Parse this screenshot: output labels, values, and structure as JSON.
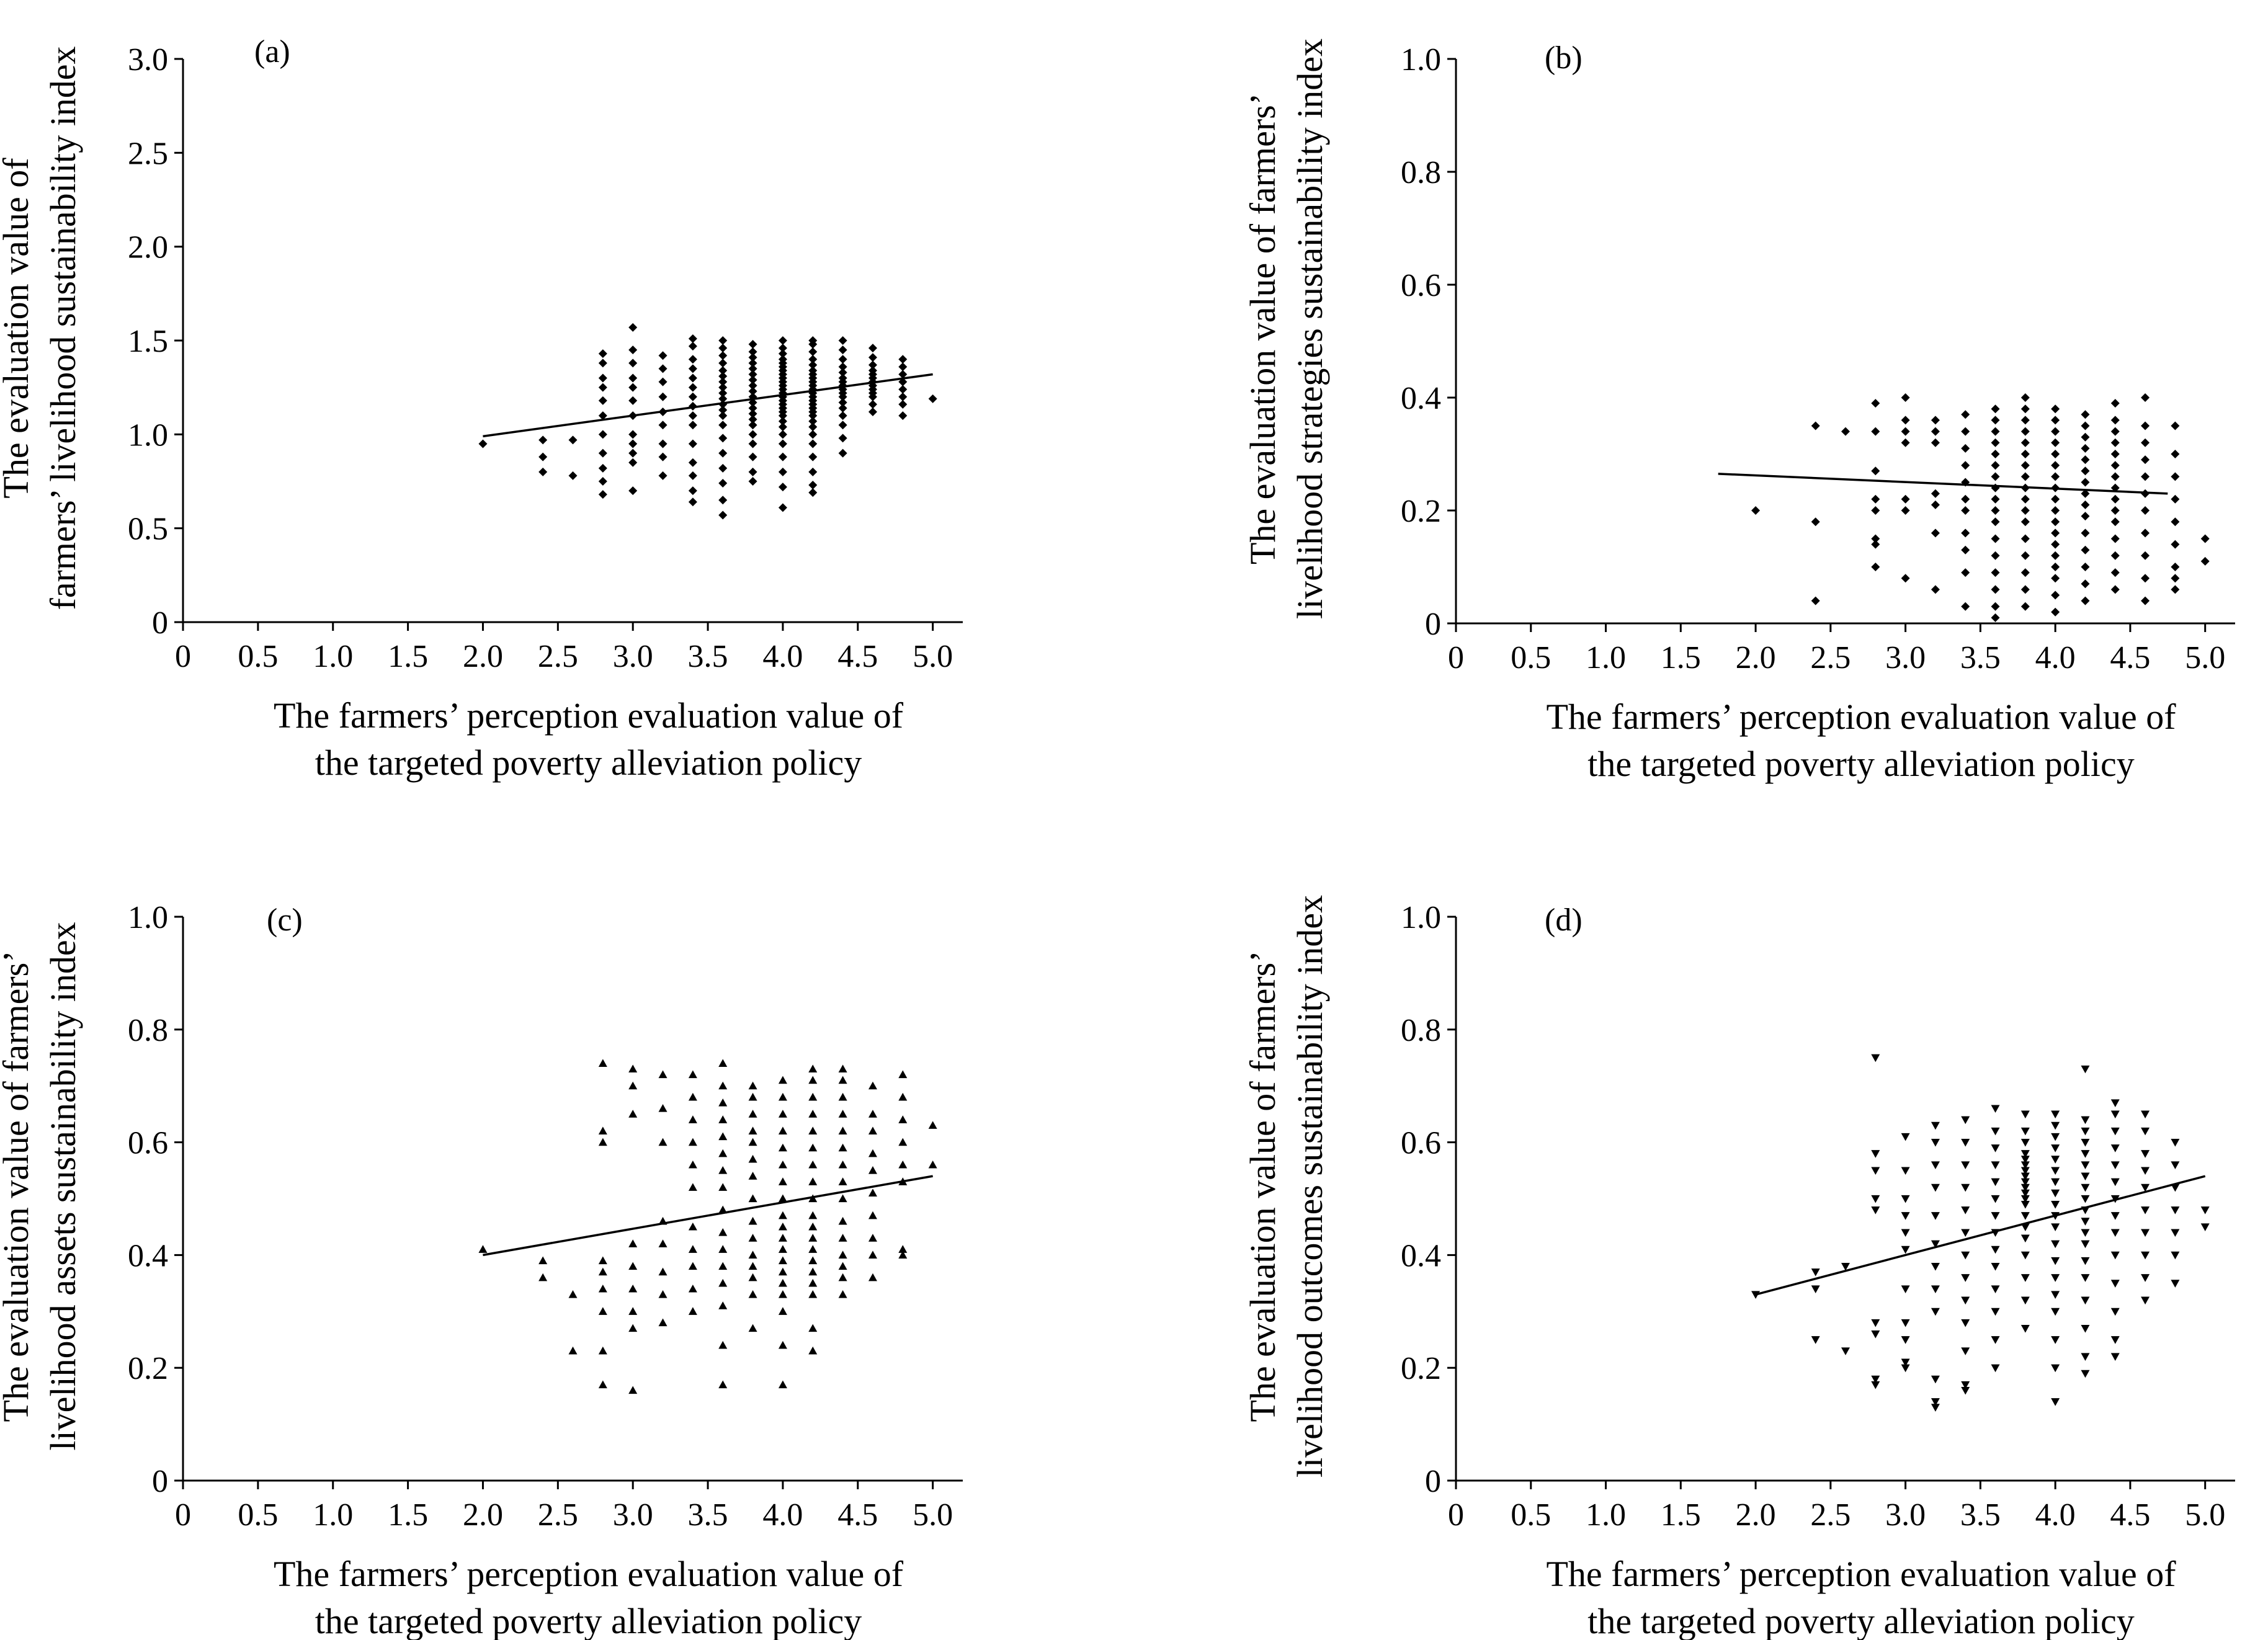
{
  "chart_data": [
    {
      "panel": "(a)",
      "type": "scatter",
      "marker": "diamond",
      "xlabel": [
        "The farmers’ perception evaluation value of",
        "the targeted poverty alleviation policy"
      ],
      "ylabel": [
        "The evaluation value of",
        "farmers’ livelihood sustainability index"
      ],
      "xlim": [
        0,
        5.2
      ],
      "ylim": [
        0,
        3.0
      ],
      "xticks": [
        "0",
        "0.5",
        "1.0",
        "1.5",
        "2.0",
        "2.5",
        "3.0",
        "3.5",
        "4.0",
        "4.5",
        "5.0"
      ],
      "yticks": [
        "0",
        "0.5",
        "1.0",
        "1.5",
        "2.0",
        "2.5",
        "3.0"
      ],
      "trendline": {
        "x": [
          2.0,
          5.0
        ],
        "y": [
          0.99,
          1.32
        ]
      },
      "columns": [
        {
          "x": 2.0,
          "y": [
            0.95
          ]
        },
        {
          "x": 2.4,
          "y": [
            0.8,
            0.88,
            0.97
          ]
        },
        {
          "x": 2.6,
          "y": [
            0.78,
            0.97
          ]
        },
        {
          "x": 2.8,
          "y": [
            0.68,
            0.75,
            0.82,
            0.9,
            1.0,
            1.1,
            1.18,
            1.25,
            1.3,
            1.38,
            1.43
          ]
        },
        {
          "x": 3.0,
          "y": [
            0.7,
            0.85,
            0.9,
            0.95,
            1.0,
            1.1,
            1.18,
            1.25,
            1.3,
            1.38,
            1.45,
            1.57
          ]
        },
        {
          "x": 3.2,
          "y": [
            0.78,
            0.88,
            0.95,
            1.05,
            1.12,
            1.2,
            1.28,
            1.35,
            1.42
          ]
        },
        {
          "x": 3.4,
          "y": [
            0.64,
            0.7,
            0.78,
            0.85,
            0.95,
            1.05,
            1.1,
            1.15,
            1.2,
            1.25,
            1.3,
            1.35,
            1.4,
            1.47,
            1.51
          ]
        },
        {
          "x": 3.6,
          "y": [
            0.57,
            0.65,
            0.74,
            0.82,
            0.9,
            0.98,
            1.05,
            1.1,
            1.13,
            1.16,
            1.19,
            1.22,
            1.25,
            1.28,
            1.31,
            1.34,
            1.38,
            1.42,
            1.46,
            1.5
          ]
        },
        {
          "x": 3.8,
          "y": [
            0.75,
            0.8,
            0.88,
            0.95,
            1.0,
            1.05,
            1.08,
            1.11,
            1.14,
            1.17,
            1.2,
            1.23,
            1.26,
            1.29,
            1.32,
            1.35,
            1.38,
            1.41,
            1.44,
            1.48
          ]
        },
        {
          "x": 4.0,
          "y": [
            0.61,
            0.72,
            0.8,
            0.88,
            0.95,
            1.0,
            1.04,
            1.07,
            1.1,
            1.12,
            1.14,
            1.16,
            1.18,
            1.2,
            1.22,
            1.24,
            1.26,
            1.28,
            1.3,
            1.32,
            1.34,
            1.36,
            1.38,
            1.4,
            1.43,
            1.46,
            1.5
          ]
        },
        {
          "x": 4.2,
          "y": [
            0.69,
            0.73,
            0.8,
            0.88,
            0.95,
            1.0,
            1.04,
            1.07,
            1.1,
            1.12,
            1.14,
            1.16,
            1.18,
            1.2,
            1.22,
            1.24,
            1.26,
            1.28,
            1.3,
            1.32,
            1.34,
            1.37,
            1.4,
            1.44,
            1.48,
            1.5
          ]
        },
        {
          "x": 4.4,
          "y": [
            0.9,
            0.98,
            1.05,
            1.1,
            1.14,
            1.17,
            1.2,
            1.22,
            1.24,
            1.26,
            1.28,
            1.3,
            1.33,
            1.36,
            1.4,
            1.45,
            1.5
          ]
        },
        {
          "x": 4.6,
          "y": [
            1.12,
            1.16,
            1.2,
            1.22,
            1.24,
            1.26,
            1.28,
            1.3,
            1.32,
            1.34,
            1.37,
            1.41,
            1.46
          ]
        },
        {
          "x": 4.8,
          "y": [
            1.1,
            1.16,
            1.2,
            1.24,
            1.28,
            1.32,
            1.36,
            1.4
          ]
        },
        {
          "x": 5.0,
          "y": [
            1.19
          ]
        }
      ]
    },
    {
      "panel": "(b)",
      "type": "scatter",
      "marker": "diamond",
      "xlabel": [
        "The farmers’ perception evaluation value of",
        "the targeted poverty alleviation policy"
      ],
      "ylabel": [
        "The evaluation value of farmers’",
        "livelihood strategies sustainability index"
      ],
      "xlim": [
        0,
        5.2
      ],
      "ylim": [
        0,
        1.0
      ],
      "xticks": [
        "0",
        "0.5",
        "1.0",
        "1.5",
        "2.0",
        "2.5",
        "3.0",
        "3.5",
        "4.0",
        "4.5",
        "5.0"
      ],
      "yticks": [
        "0",
        "0.2",
        "0.4",
        "0.6",
        "0.8",
        "1.0"
      ],
      "trendline": {
        "x": [
          1.75,
          4.75
        ],
        "y": [
          0.265,
          0.23
        ]
      },
      "columns": [
        {
          "x": 2.0,
          "y": [
            0.2
          ]
        },
        {
          "x": 2.4,
          "y": [
            0.04,
            0.18,
            0.35
          ]
        },
        {
          "x": 2.6,
          "y": [
            0.34
          ]
        },
        {
          "x": 2.8,
          "y": [
            0.1,
            0.14,
            0.15,
            0.2,
            0.22,
            0.27,
            0.34,
            0.39
          ]
        },
        {
          "x": 3.0,
          "y": [
            0.08,
            0.2,
            0.22,
            0.32,
            0.34,
            0.36,
            0.4
          ]
        },
        {
          "x": 3.2,
          "y": [
            0.06,
            0.16,
            0.21,
            0.23,
            0.32,
            0.34,
            0.36
          ]
        },
        {
          "x": 3.4,
          "y": [
            0.03,
            0.09,
            0.13,
            0.16,
            0.2,
            0.22,
            0.25,
            0.28,
            0.31,
            0.34,
            0.37
          ]
        },
        {
          "x": 3.6,
          "y": [
            0.01,
            0.03,
            0.06,
            0.09,
            0.12,
            0.15,
            0.18,
            0.2,
            0.22,
            0.24,
            0.26,
            0.28,
            0.3,
            0.32,
            0.34,
            0.36,
            0.38
          ]
        },
        {
          "x": 3.8,
          "y": [
            0.03,
            0.06,
            0.09,
            0.12,
            0.15,
            0.18,
            0.2,
            0.22,
            0.24,
            0.26,
            0.28,
            0.3,
            0.32,
            0.34,
            0.36,
            0.38,
            0.4
          ]
        },
        {
          "x": 4.0,
          "y": [
            0.02,
            0.05,
            0.08,
            0.1,
            0.12,
            0.14,
            0.16,
            0.18,
            0.2,
            0.22,
            0.24,
            0.26,
            0.28,
            0.3,
            0.32,
            0.34,
            0.36,
            0.38
          ]
        },
        {
          "x": 4.2,
          "y": [
            0.04,
            0.07,
            0.1,
            0.13,
            0.16,
            0.19,
            0.21,
            0.23,
            0.25,
            0.27,
            0.29,
            0.31,
            0.33,
            0.35,
            0.37
          ]
        },
        {
          "x": 4.4,
          "y": [
            0.06,
            0.09,
            0.12,
            0.15,
            0.18,
            0.2,
            0.22,
            0.24,
            0.26,
            0.28,
            0.3,
            0.32,
            0.34,
            0.36,
            0.39
          ]
        },
        {
          "x": 4.6,
          "y": [
            0.04,
            0.08,
            0.12,
            0.16,
            0.2,
            0.23,
            0.26,
            0.29,
            0.32,
            0.35,
            0.4
          ]
        },
        {
          "x": 4.8,
          "y": [
            0.06,
            0.08,
            0.1,
            0.14,
            0.18,
            0.22,
            0.26,
            0.3,
            0.35
          ]
        },
        {
          "x": 5.0,
          "y": [
            0.11,
            0.15
          ]
        }
      ]
    },
    {
      "panel": "(c)",
      "type": "scatter",
      "marker": "triangle-up",
      "xlabel": [
        "The farmers’ perception evaluation value of",
        "the targeted poverty alleviation policy"
      ],
      "ylabel": [
        "The evaluation value of farmers’",
        "livelihood assets sustainability index"
      ],
      "xlim": [
        0,
        5.2
      ],
      "ylim": [
        0,
        1.0
      ],
      "xticks": [
        "0",
        "0.5",
        "1.0",
        "1.5",
        "2.0",
        "2.5",
        "3.0",
        "3.5",
        "4.0",
        "4.5",
        "5.0"
      ],
      "yticks": [
        "0",
        "0.2",
        "0.4",
        "0.6",
        "0.8",
        "1.0"
      ],
      "trendline": {
        "x": [
          2.0,
          5.0
        ],
        "y": [
          0.4,
          0.54
        ]
      },
      "columns": [
        {
          "x": 2.0,
          "y": [
            0.41
          ]
        },
        {
          "x": 2.4,
          "y": [
            0.36,
            0.39
          ]
        },
        {
          "x": 2.6,
          "y": [
            0.23,
            0.33
          ]
        },
        {
          "x": 2.8,
          "y": [
            0.17,
            0.23,
            0.3,
            0.34,
            0.37,
            0.39,
            0.6,
            0.62,
            0.74
          ]
        },
        {
          "x": 3.0,
          "y": [
            0.16,
            0.27,
            0.3,
            0.34,
            0.38,
            0.42,
            0.65,
            0.7,
            0.73
          ]
        },
        {
          "x": 3.2,
          "y": [
            0.28,
            0.33,
            0.37,
            0.42,
            0.46,
            0.6,
            0.66,
            0.72
          ]
        },
        {
          "x": 3.4,
          "y": [
            0.3,
            0.34,
            0.38,
            0.41,
            0.45,
            0.52,
            0.56,
            0.6,
            0.64,
            0.68,
            0.72
          ]
        },
        {
          "x": 3.6,
          "y": [
            0.17,
            0.24,
            0.31,
            0.35,
            0.38,
            0.41,
            0.44,
            0.48,
            0.52,
            0.55,
            0.58,
            0.61,
            0.64,
            0.67,
            0.7,
            0.74
          ]
        },
        {
          "x": 3.8,
          "y": [
            0.27,
            0.33,
            0.36,
            0.38,
            0.4,
            0.43,
            0.46,
            0.5,
            0.54,
            0.57,
            0.6,
            0.62,
            0.65,
            0.68,
            0.7
          ]
        },
        {
          "x": 4.0,
          "y": [
            0.17,
            0.24,
            0.3,
            0.33,
            0.35,
            0.37,
            0.39,
            0.41,
            0.43,
            0.45,
            0.47,
            0.5,
            0.53,
            0.56,
            0.59,
            0.62,
            0.65,
            0.68,
            0.71
          ]
        },
        {
          "x": 4.2,
          "y": [
            0.23,
            0.27,
            0.33,
            0.35,
            0.37,
            0.39,
            0.41,
            0.43,
            0.45,
            0.47,
            0.5,
            0.53,
            0.56,
            0.59,
            0.62,
            0.65,
            0.68,
            0.71,
            0.73
          ]
        },
        {
          "x": 4.4,
          "y": [
            0.33,
            0.36,
            0.38,
            0.4,
            0.43,
            0.46,
            0.5,
            0.53,
            0.56,
            0.59,
            0.62,
            0.65,
            0.68,
            0.71,
            0.73
          ]
        },
        {
          "x": 4.6,
          "y": [
            0.36,
            0.4,
            0.43,
            0.47,
            0.51,
            0.55,
            0.58,
            0.62,
            0.65,
            0.7
          ]
        },
        {
          "x": 4.8,
          "y": [
            0.4,
            0.41,
            0.53,
            0.56,
            0.6,
            0.64,
            0.68,
            0.72
          ]
        },
        {
          "x": 5.0,
          "y": [
            0.56,
            0.63
          ]
        }
      ]
    },
    {
      "panel": "(d)",
      "type": "scatter",
      "marker": "triangle-down",
      "xlabel": [
        "The farmers’ perception evaluation value of",
        "the targeted poverty alleviation policy"
      ],
      "ylabel": [
        "The evaluation value of farmers’",
        "livelihood outcomes sustainability index"
      ],
      "xlim": [
        0,
        5.2
      ],
      "ylim": [
        0,
        1.0
      ],
      "xticks": [
        "0",
        "0.5",
        "1.0",
        "1.5",
        "2.0",
        "2.5",
        "3.0",
        "3.5",
        "4.0",
        "4.5",
        "5.0"
      ],
      "yticks": [
        "0",
        "0.2",
        "0.4",
        "0.6",
        "0.8",
        "1.0"
      ],
      "trendline": {
        "x": [
          2.0,
          5.0
        ],
        "y": [
          0.33,
          0.54
        ]
      },
      "columns": [
        {
          "x": 2.0,
          "y": [
            0.33
          ]
        },
        {
          "x": 2.4,
          "y": [
            0.25,
            0.34,
            0.37
          ]
        },
        {
          "x": 2.6,
          "y": [
            0.23,
            0.38
          ]
        },
        {
          "x": 2.8,
          "y": [
            0.17,
            0.18,
            0.26,
            0.28,
            0.48,
            0.5,
            0.55,
            0.58,
            0.75
          ]
        },
        {
          "x": 3.0,
          "y": [
            0.2,
            0.21,
            0.25,
            0.28,
            0.34,
            0.41,
            0.44,
            0.47,
            0.5,
            0.55,
            0.61
          ]
        },
        {
          "x": 3.2,
          "y": [
            0.13,
            0.14,
            0.18,
            0.3,
            0.34,
            0.38,
            0.42,
            0.47,
            0.52,
            0.56,
            0.6,
            0.63
          ]
        },
        {
          "x": 3.4,
          "y": [
            0.16,
            0.17,
            0.23,
            0.28,
            0.32,
            0.36,
            0.4,
            0.44,
            0.48,
            0.52,
            0.56,
            0.6,
            0.64
          ]
        },
        {
          "x": 3.6,
          "y": [
            0.2,
            0.25,
            0.3,
            0.34,
            0.38,
            0.41,
            0.44,
            0.47,
            0.5,
            0.53,
            0.56,
            0.59,
            0.62,
            0.66
          ]
        },
        {
          "x": 3.8,
          "y": [
            0.27,
            0.32,
            0.36,
            0.4,
            0.43,
            0.45,
            0.47,
            0.49,
            0.5,
            0.51,
            0.52,
            0.53,
            0.54,
            0.55,
            0.56,
            0.57,
            0.58,
            0.6,
            0.62,
            0.65
          ]
        },
        {
          "x": 4.0,
          "y": [
            0.14,
            0.2,
            0.25,
            0.3,
            0.33,
            0.36,
            0.39,
            0.42,
            0.45,
            0.47,
            0.49,
            0.51,
            0.53,
            0.55,
            0.57,
            0.59,
            0.61,
            0.63,
            0.65
          ]
        },
        {
          "x": 4.2,
          "y": [
            0.19,
            0.22,
            0.27,
            0.32,
            0.36,
            0.39,
            0.42,
            0.44,
            0.46,
            0.48,
            0.5,
            0.52,
            0.54,
            0.56,
            0.58,
            0.6,
            0.62,
            0.64,
            0.73
          ]
        },
        {
          "x": 4.4,
          "y": [
            0.22,
            0.25,
            0.3,
            0.35,
            0.4,
            0.44,
            0.47,
            0.5,
            0.53,
            0.56,
            0.59,
            0.62,
            0.65,
            0.67
          ]
        },
        {
          "x": 4.6,
          "y": [
            0.32,
            0.36,
            0.4,
            0.44,
            0.48,
            0.52,
            0.55,
            0.58,
            0.62,
            0.65
          ]
        },
        {
          "x": 4.8,
          "y": [
            0.35,
            0.4,
            0.44,
            0.48,
            0.52,
            0.56,
            0.6
          ]
        },
        {
          "x": 5.0,
          "y": [
            0.45,
            0.48
          ]
        }
      ]
    }
  ]
}
